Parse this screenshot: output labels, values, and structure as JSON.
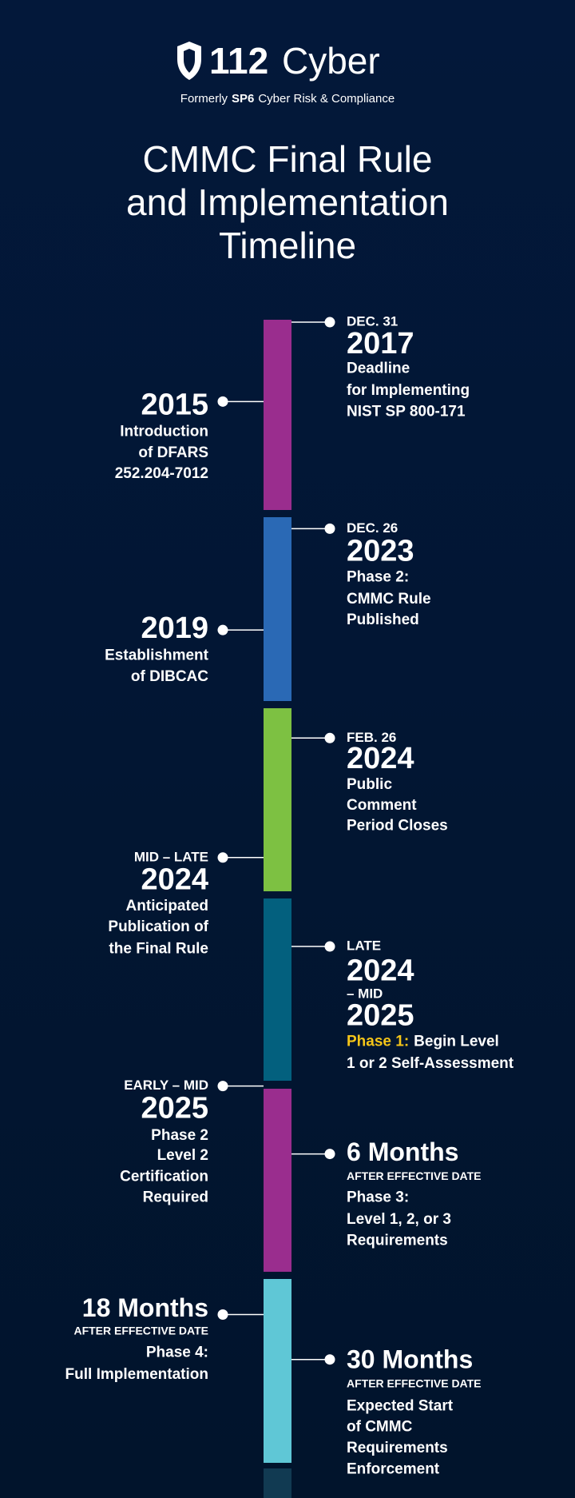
{
  "header": {
    "logo_number": "112",
    "logo_word": "Cyber",
    "tagline_prefix": "Formerly",
    "tagline_bold": "SP6",
    "tagline_rest": "Cyber Risk & Compliance"
  },
  "title": [
    "CMMC Final Rule",
    "and Implementation",
    "Timeline"
  ],
  "events": [
    {
      "kicker": "DEC. 31",
      "year": "2017",
      "highlight": "Deadline",
      "text": [
        "for Implementing",
        "NIST SP 800-171"
      ]
    },
    {
      "year": "2015",
      "highlight": "Introduction",
      "text": [
        "of DFARS",
        "252.204-7012"
      ]
    },
    {
      "kicker": "DEC. 26",
      "year": "2023",
      "highlight": "Phase 2:",
      "text": [
        "CMMC Rule",
        "Published"
      ]
    },
    {
      "year": "2019",
      "highlight": "Establishment",
      "text": [
        "of DIBCAC"
      ]
    },
    {
      "kicker": "FEB. 26",
      "year": "2024",
      "highlight": "Public",
      "text": [
        "Comment",
        "Period Closes"
      ]
    },
    {
      "kicker": "MID – LATE",
      "year": "2024",
      "highlight": "Anticipated",
      "text": [
        "Publication of",
        "the Final Rule"
      ]
    },
    {
      "kicker": "LATE",
      "year": "2024",
      "kicker2": "– MID",
      "year2": "2025",
      "highlight": "Phase 1:",
      "text": [
        "Begin Level",
        "1 or 2 Self-Assessment"
      ]
    },
    {
      "kicker": "EARLY – MID",
      "year": "2025",
      "highlight": "Phase 2",
      "text": [
        "Level 2",
        "Certification",
        "Required"
      ]
    },
    {
      "year": "6 Months",
      "note": "AFTER EFFECTIVE DATE",
      "highlight": "Phase 3:",
      "text": [
        "Level 1, 2, or 3",
        "Requirements"
      ]
    },
    {
      "year": "18 Months",
      "note": "AFTER EFFECTIVE DATE",
      "highlight": "Phase 4:",
      "text": [
        "Full Implementation"
      ]
    },
    {
      "year": "30 Months",
      "note": "AFTER EFFECTIVE DATE",
      "highlight": "Expected Start",
      "text": [
        "of CMMC",
        "Requirements",
        "Enforcement"
      ]
    }
  ]
}
